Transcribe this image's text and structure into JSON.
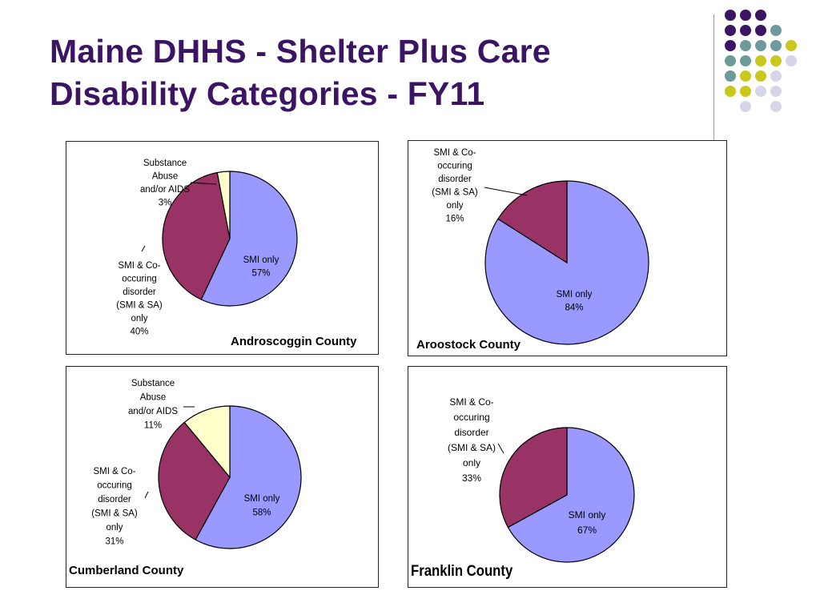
{
  "slide": {
    "title_line1": "Maine DHHS - Shelter Plus Care",
    "title_line2": "Disability Categories - FY11"
  },
  "colors": {
    "title": "#3b1463",
    "smi_only": "#9999ff",
    "smi_sa": "#993366",
    "substance_abuse": "#ffffcc",
    "dot_purple": "#3b1463",
    "dot_teal": "#6e9a9a",
    "dot_yellow": "#c8c81e",
    "dot_lavender": "#d6d6e8"
  },
  "chart_data": [
    {
      "type": "pie",
      "title": "Androscoggin County",
      "slices": [
        {
          "label": [
            "SMI only",
            "57%"
          ],
          "value": 57,
          "color": "#9999ff"
        },
        {
          "label": [
            "SMI & Co-",
            "occuring",
            "disorder",
            "(SMI & SA)",
            "only",
            "40%"
          ],
          "value": 40,
          "color": "#993366"
        },
        {
          "label": [
            "Substance",
            "Abuse",
            "and/or AIDS",
            "3%"
          ],
          "value": 3,
          "color": "#ffffcc"
        }
      ]
    },
    {
      "type": "pie",
      "title": "Aroostock County",
      "slices": [
        {
          "label": [
            "SMI only",
            "84%"
          ],
          "value": 84,
          "color": "#9999ff"
        },
        {
          "label": [
            "SMI & Co-",
            "occuring",
            "disorder",
            "(SMI & SA)",
            "only",
            "16%"
          ],
          "value": 16,
          "color": "#993366"
        }
      ]
    },
    {
      "type": "pie",
      "title": "Cumberland County",
      "slices": [
        {
          "label": [
            "SMI only",
            "58%"
          ],
          "value": 58,
          "color": "#9999ff"
        },
        {
          "label": [
            "SMI & Co-",
            "occuring",
            "disorder",
            "(SMI & SA)",
            "only",
            "31%"
          ],
          "value": 31,
          "color": "#993366"
        },
        {
          "label": [
            "Substance",
            "Abuse",
            "and/or AIDS",
            "11%"
          ],
          "value": 11,
          "color": "#ffffcc"
        }
      ]
    },
    {
      "type": "pie",
      "title": "Franklin County",
      "slices": [
        {
          "label": [
            "SMI only",
            "67%"
          ],
          "value": 67,
          "color": "#9999ff"
        },
        {
          "label": [
            "SMI & Co-",
            "occuring",
            "disorder",
            "(SMI & SA)",
            "only",
            "33%"
          ],
          "value": 33,
          "color": "#993366"
        }
      ]
    }
  ]
}
